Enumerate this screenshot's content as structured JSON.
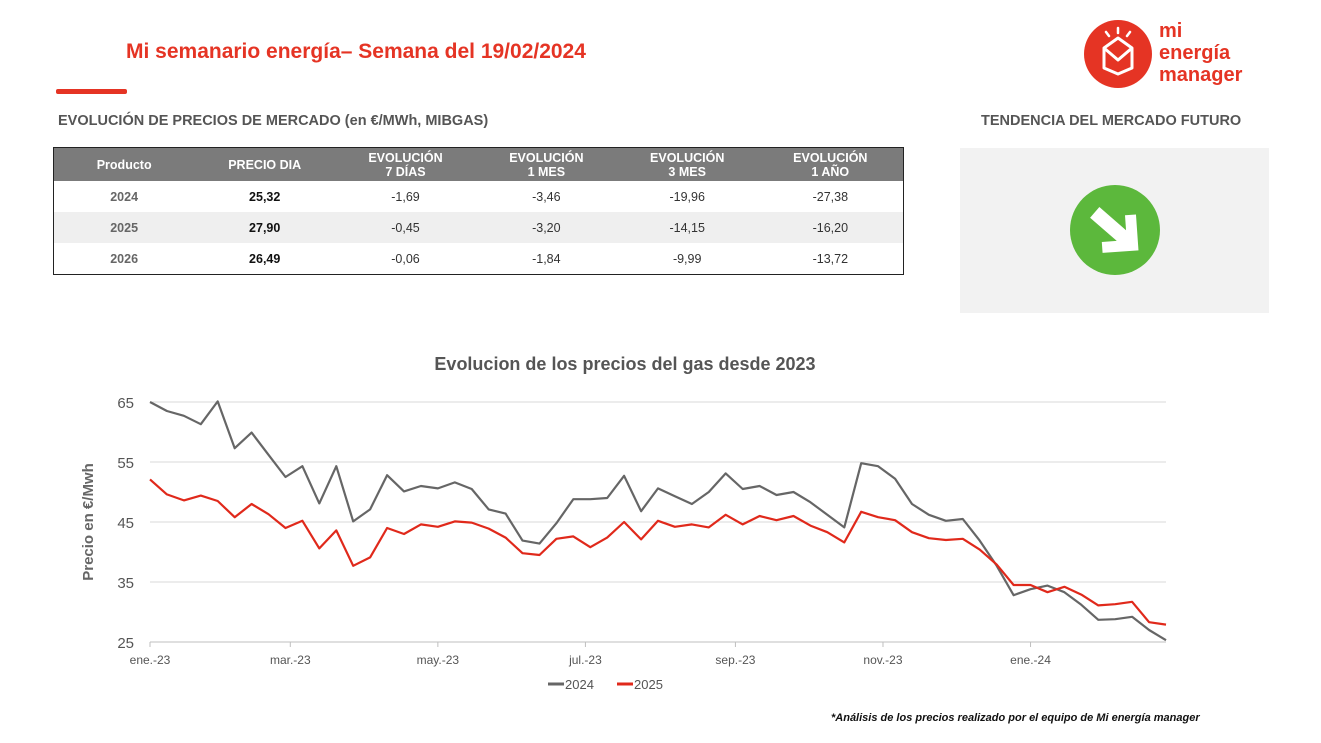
{
  "header": {
    "title": "Mi semanario energía– Semana del 19/02/2024",
    "logo_lines": [
      "mi",
      "energía",
      "manager"
    ]
  },
  "market_section": {
    "heading": "EVOLUCIÓN DE PRECIOS DE MERCADO (en €/MWh, MIBGAS)",
    "columns": [
      [
        "Producto"
      ],
      [
        "PRECIO DIA"
      ],
      [
        "EVOLUCIÓN",
        "7 DÍAS"
      ],
      [
        "EVOLUCIÓN",
        "1 MES"
      ],
      [
        "EVOLUCIÓN",
        "3 MES"
      ],
      [
        "EVOLUCIÓN",
        "1 AÑO"
      ]
    ],
    "rows": [
      [
        "2024",
        "25,32",
        "-1,69",
        "-3,46",
        "-19,96",
        "-27,38"
      ],
      [
        "2025",
        "27,90",
        "-0,45",
        "-3,20",
        "-14,15",
        "-16,20"
      ],
      [
        "2026",
        "26,49",
        "-0,06",
        "-1,84",
        "-9,99",
        "-13,72"
      ]
    ]
  },
  "trend_section": {
    "heading": "TENDENCIA DEL MERCADO FUTURO",
    "icon": "down-right-arrow-icon",
    "color": "#5cb83c"
  },
  "footnote": "*Análisis de los precios realizado por el equipo de Mi energía manager",
  "colors": {
    "accent": "#e53424",
    "series_2024": "#666666",
    "series_2025": "#e0291b"
  },
  "chart_data": {
    "type": "line",
    "title": "Evolucion de los precios del gas desde 2023",
    "xlabel": "",
    "ylabel": "Precio en €/Mwh",
    "x_tick_labels": [
      "ene.-23",
      "mar.-23",
      "may.-23",
      "jul.-23",
      "sep.-23",
      "nov.-23",
      "ene.-24"
    ],
    "y_ticks": [
      25,
      35,
      45,
      55,
      65
    ],
    "ylim": [
      25,
      65
    ],
    "grid": "horizontal",
    "legend": "bottom",
    "x_start": "2023-01-02",
    "x_step_days": 7,
    "series": [
      {
        "name": "2024",
        "values": [
          65.0,
          63.5,
          62.7,
          61.3,
          65.1,
          57.3,
          59.9,
          56.2,
          52.5,
          54.3,
          48.1,
          54.3,
          45.1,
          47.1,
          52.8,
          50.1,
          51.0,
          50.6,
          51.6,
          50.5,
          47.1,
          46.4,
          41.9,
          41.4,
          44.8,
          48.8,
          48.8,
          49.0,
          52.7,
          46.8,
          50.6,
          49.3,
          48.0,
          50.0,
          53.1,
          50.5,
          51.0,
          49.5,
          50.0,
          48.3,
          46.2,
          44.1,
          54.8,
          54.3,
          52.2,
          48.0,
          46.2,
          45.2,
          45.5,
          41.9,
          37.7,
          32.8,
          33.8,
          34.4,
          33.3,
          31.2,
          28.7,
          28.8,
          29.2,
          27.0,
          25.3
        ]
      },
      {
        "name": "2025",
        "values": [
          52.1,
          49.6,
          48.6,
          49.4,
          48.5,
          45.8,
          48.0,
          46.3,
          44.0,
          45.2,
          40.6,
          43.6,
          37.7,
          39.1,
          44.0,
          43.0,
          44.6,
          44.2,
          45.1,
          44.9,
          43.9,
          42.4,
          39.8,
          39.5,
          42.2,
          42.6,
          40.8,
          42.4,
          45.0,
          42.1,
          45.2,
          44.2,
          44.6,
          44.1,
          46.2,
          44.6,
          46.0,
          45.3,
          46.0,
          44.4,
          43.3,
          41.6,
          46.7,
          45.8,
          45.3,
          43.3,
          42.3,
          42.0,
          42.2,
          40.4,
          37.9,
          34.5,
          34.5,
          33.3,
          34.2,
          32.9,
          31.1,
          31.3,
          31.7,
          28.3,
          27.9
        ]
      }
    ]
  }
}
